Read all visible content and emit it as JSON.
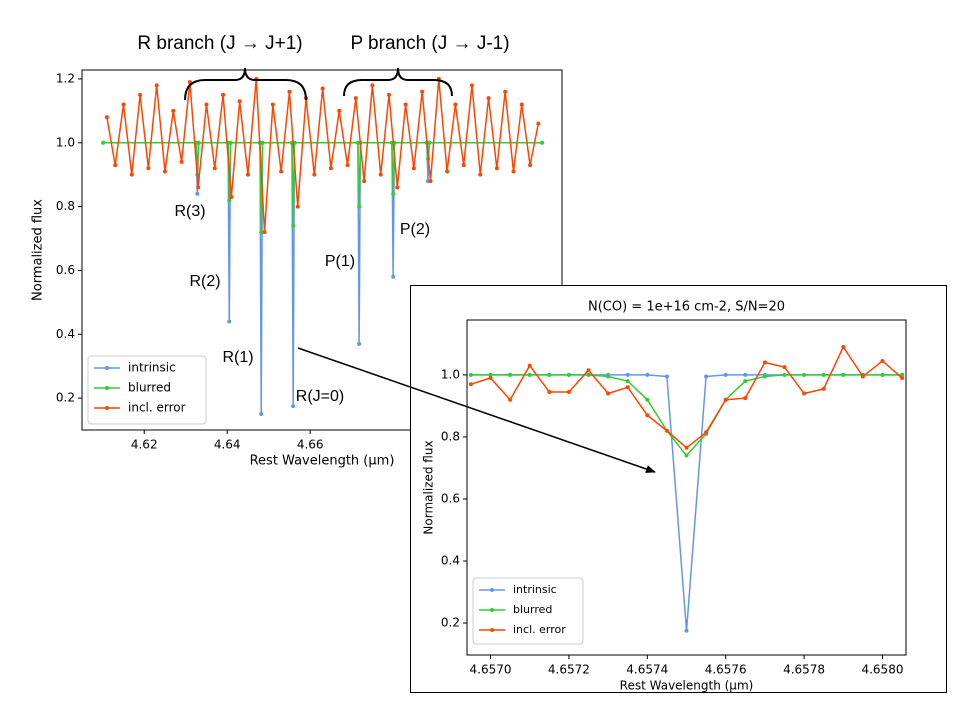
{
  "chart_data": [
    {
      "type": "line",
      "xlabel": "Rest Wavelength (μm)",
      "ylabel": "Normalized flux",
      "xlim": [
        4.605,
        4.7207
      ],
      "ylim": [
        0.1,
        1.228
      ],
      "xticks": [
        4.62,
        4.64,
        4.66
      ],
      "yticks": [
        0.2,
        0.4,
        0.6,
        0.8,
        {
          "value": 1.0,
          "label": "1.0"
        },
        1.2
      ],
      "legend": "lower left",
      "annotations": [
        "R branch (J → J+1)",
        "P branch (J → J-1)",
        "R(3)",
        "R(2)",
        "R(1)",
        "R(J=0)",
        "P(1)",
        "P(2)"
      ],
      "series": [
        {
          "name": "intrinsic",
          "color": "#6495ed",
          "x": [
            4.6101,
            4.6325,
            4.6328,
            4.6331,
            4.6402,
            4.6405,
            4.6408,
            4.6479,
            4.6482,
            4.6485,
            4.6556,
            4.6559,
            4.6562,
            4.6715,
            4.6718,
            4.6721,
            4.6797,
            4.68,
            4.6803,
            4.6881,
            4.6884,
            4.6887,
            4.7159
          ],
          "values": [
            1,
            1,
            0.84,
            1,
            1,
            0.44,
            1,
            1,
            0.15,
            1,
            1,
            0.175,
            1,
            1,
            0.37,
            1,
            1,
            0.58,
            1,
            1,
            0.88,
            1,
            1
          ]
        },
        {
          "name": "blurred",
          "color": "#32cd32",
          "x": [
            4.6101,
            4.6325,
            4.6328,
            4.6331,
            4.6402,
            4.6405,
            4.6408,
            4.6479,
            4.6482,
            4.6485,
            4.6556,
            4.6559,
            4.6562,
            4.6715,
            4.6718,
            4.6721,
            4.6797,
            4.68,
            4.6803,
            4.6881,
            4.6884,
            4.6887,
            4.7159
          ],
          "values": [
            1,
            1,
            0.9,
            1,
            1,
            0.82,
            1,
            1,
            0.72,
            1,
            1,
            0.74,
            1,
            1,
            0.8,
            1,
            1,
            0.84,
            1,
            1,
            0.95,
            1,
            1
          ]
        },
        {
          "name": "incl. error",
          "color": "#ff4500",
          "x": [
            4.611,
            4.613,
            4.615,
            4.617,
            4.619,
            4.621,
            4.623,
            4.625,
            4.627,
            4.629,
            4.631,
            4.633,
            4.635,
            4.637,
            4.639,
            4.641,
            4.643,
            4.645,
            4.647,
            4.649,
            4.651,
            4.653,
            4.655,
            4.657,
            4.659,
            4.661,
            4.663,
            4.665,
            4.667,
            4.669,
            4.671,
            4.673,
            4.675,
            4.677,
            4.679,
            4.681,
            4.683,
            4.685,
            4.687,
            4.689,
            4.691,
            4.693,
            4.695,
            4.697,
            4.699,
            4.701,
            4.703,
            4.705,
            4.707,
            4.709,
            4.711,
            4.713,
            4.715
          ],
          "values": [
            1.08,
            0.93,
            1.12,
            0.9,
            1.15,
            0.92,
            1.18,
            0.91,
            1.1,
            0.94,
            1.19,
            0.86,
            1.12,
            0.92,
            1.15,
            0.83,
            1.13,
            0.9,
            1.2,
            0.72,
            1.12,
            0.91,
            1.16,
            0.8,
            1.14,
            0.9,
            1.17,
            0.92,
            1.1,
            0.93,
            1.14,
            0.88,
            1.18,
            0.9,
            1.15,
            0.86,
            1.12,
            0.92,
            1.16,
            0.88,
            1.2,
            0.91,
            1.12,
            0.93,
            1.18,
            0.9,
            1.14,
            0.92,
            1.16,
            0.91,
            1.12,
            0.93,
            1.06
          ]
        }
      ]
    },
    {
      "type": "line",
      "title": "N(CO) = 1e+16 cm-2, S/N=20",
      "xlabel": "Rest Wavelength (μm)",
      "ylabel": "Normalized flux",
      "xlim": [
        4.65694,
        4.65806
      ],
      "ylim": [
        0.097,
        1.177
      ],
      "xticks": [
        {
          "value": 4.657,
          "label": "4.6570"
        },
        {
          "value": 4.6572,
          "label": "4.6572"
        },
        {
          "value": 4.6574,
          "label": "4.6574"
        },
        {
          "value": 4.6576,
          "label": "4.6576"
        },
        {
          "value": 4.6578,
          "label": "4.6578"
        },
        {
          "value": 4.658,
          "label": "4.6580"
        }
      ],
      "yticks": [
        0.2,
        0.4,
        0.6,
        0.8,
        {
          "value": 1.0,
          "label": "1.0"
        }
      ],
      "legend": "lower left",
      "series": [
        {
          "name": "intrinsic",
          "color": "#6495ed",
          "x": [
            4.65695,
            4.657,
            4.65705,
            4.6571,
            4.65715,
            4.6572,
            4.65725,
            4.6573,
            4.65735,
            4.6574,
            4.65745,
            4.6575,
            4.65755,
            4.6576,
            4.65765,
            4.6577,
            4.65775,
            4.6578,
            4.65785,
            4.6579,
            4.65795,
            4.658,
            4.65805
          ],
          "values": [
            1,
            1,
            1,
            1,
            1,
            1,
            1,
            1,
            1,
            1,
            0.995,
            0.175,
            0.995,
            1,
            1,
            1,
            1,
            1,
            1,
            1,
            1,
            1,
            1
          ]
        },
        {
          "name": "blurred",
          "color": "#32cd32",
          "x": [
            4.65695,
            4.657,
            4.65705,
            4.6571,
            4.65715,
            4.6572,
            4.65725,
            4.6573,
            4.65735,
            4.6574,
            4.65745,
            4.6575,
            4.65755,
            4.6576,
            4.65765,
            4.6577,
            4.65775,
            4.6578,
            4.65785,
            4.6579,
            4.65795,
            4.658,
            4.65805
          ],
          "values": [
            1,
            1,
            1,
            1,
            1,
            1,
            1,
            0.995,
            0.98,
            0.92,
            0.82,
            0.74,
            0.81,
            0.92,
            0.98,
            0.995,
            1,
            1,
            1,
            1,
            1,
            1,
            1
          ]
        },
        {
          "name": "incl. error",
          "color": "#ff4500",
          "x": [
            4.65695,
            4.657,
            4.65705,
            4.6571,
            4.65715,
            4.6572,
            4.65725,
            4.6573,
            4.65735,
            4.6574,
            4.65745,
            4.6575,
            4.65755,
            4.6576,
            4.65765,
            4.6577,
            4.65775,
            4.6578,
            4.65785,
            4.6579,
            4.65795,
            4.658,
            4.65805
          ],
          "values": [
            0.97,
            0.99,
            0.92,
            1.03,
            0.945,
            0.945,
            1.015,
            0.94,
            0.96,
            0.87,
            0.82,
            0.765,
            0.815,
            0.92,
            0.925,
            1.04,
            1.025,
            0.94,
            0.955,
            1.09,
            0.995,
            1.045,
            0.99
          ]
        }
      ]
    }
  ]
}
